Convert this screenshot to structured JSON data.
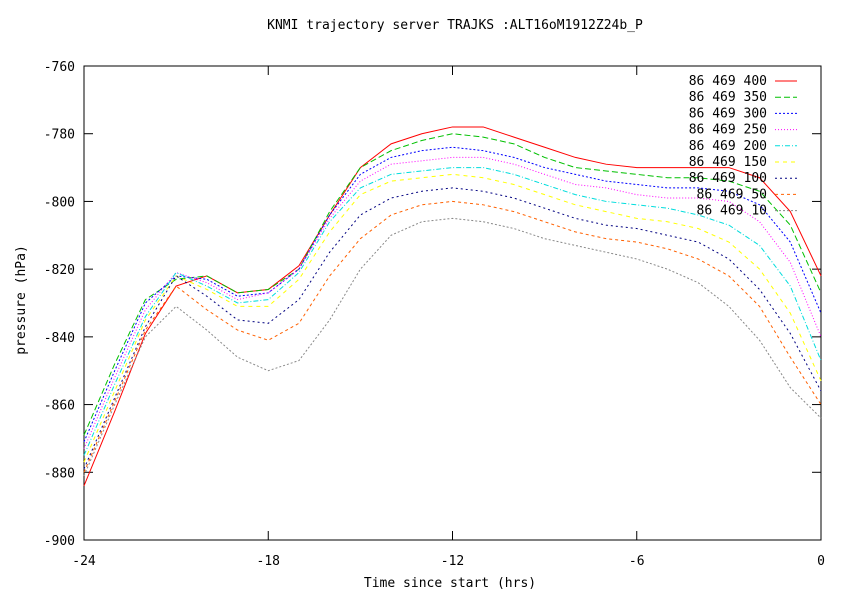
{
  "chart_data": {
    "type": "line",
    "title": "KNMI trajectory server TRAJKS :ALT16oM1912Z24b_P",
    "xlabel": "Time since start (hrs)",
    "ylabel": "pressure (hPa)",
    "xlim": [
      -24,
      0
    ],
    "ylim": [
      -900,
      -760
    ],
    "xticks": [
      -24,
      -18,
      -12,
      -6,
      0
    ],
    "yticks": [
      -900,
      -880,
      -860,
      -840,
      -820,
      -800,
      -780,
      -760
    ],
    "grid": false,
    "legend_position": "top-right",
    "x": [
      -24,
      -23,
      -22,
      -21,
      -20,
      -19,
      -18,
      -17,
      -16,
      -15,
      -14,
      -13,
      -12,
      -11,
      -10,
      -9,
      -8,
      -7,
      -6,
      -5,
      -4,
      -3,
      -2,
      -1,
      0
    ],
    "series": [
      {
        "name": "86 469 400",
        "color": "#ff0000",
        "dash": "",
        "values": [
          -884,
          -862,
          -839,
          -825,
          -822,
          -827,
          -826,
          -819,
          -804,
          -790,
          -783,
          -780,
          -778,
          -778,
          -781,
          -784,
          -787,
          -789,
          -790,
          -790,
          -790,
          -790,
          -793,
          -803,
          -822
        ]
      },
      {
        "name": "86 469 350",
        "color": "#00c000",
        "dash": "6,3",
        "values": [
          -869,
          -848,
          -829,
          -823,
          -822,
          -827,
          -826,
          -820,
          -803,
          -790,
          -785,
          -782,
          -780,
          -781,
          -783,
          -787,
          -790,
          -791,
          -792,
          -793,
          -793,
          -794,
          -797,
          -807,
          -827
        ]
      },
      {
        "name": "86 469 300",
        "color": "#0000ff",
        "dash": "2,2",
        "values": [
          -871,
          -850,
          -830,
          -822,
          -823,
          -828,
          -827,
          -820,
          -804,
          -792,
          -787,
          -785,
          -784,
          -785,
          -787,
          -790,
          -792,
          -794,
          -795,
          -796,
          -796,
          -797,
          -801,
          -812,
          -833
        ]
      },
      {
        "name": "86 469 250",
        "color": "#ff00ff",
        "dash": "1,2",
        "values": [
          -873,
          -852,
          -832,
          -821,
          -824,
          -829,
          -827,
          -820,
          -805,
          -794,
          -789,
          -788,
          -787,
          -787,
          -789,
          -792,
          -795,
          -796,
          -798,
          -799,
          -799,
          -800,
          -806,
          -818,
          -840
        ]
      },
      {
        "name": "86 469 200",
        "color": "#00dddd",
        "dash": "5,2,1,2",
        "values": [
          -875,
          -854,
          -834,
          -821,
          -825,
          -830,
          -829,
          -821,
          -806,
          -796,
          -792,
          -791,
          -790,
          -790,
          -792,
          -795,
          -798,
          -800,
          -801,
          -802,
          -804,
          -807,
          -813,
          -825,
          -847
        ]
      },
      {
        "name": "86 469 150",
        "color": "#ffff00",
        "dash": "4,4",
        "values": [
          -877,
          -856,
          -835,
          -822,
          -826,
          -831,
          -831,
          -823,
          -809,
          -798,
          -794,
          -793,
          -792,
          -793,
          -795,
          -798,
          -801,
          -803,
          -805,
          -806,
          -808,
          -812,
          -820,
          -833,
          -853
        ]
      },
      {
        "name": "86 469 100",
        "color": "#000080",
        "dash": "2,3",
        "values": [
          -879,
          -858,
          -837,
          -822,
          -828,
          -835,
          -836,
          -829,
          -815,
          -804,
          -799,
          -797,
          -796,
          -797,
          -799,
          -802,
          -805,
          -807,
          -808,
          -810,
          -812,
          -817,
          -826,
          -839,
          -856
        ]
      },
      {
        "name": "86 469 50",
        "color": "#ff6000",
        "dash": "3,3",
        "values": [
          -880,
          -859,
          -838,
          -825,
          -832,
          -838,
          -841,
          -836,
          -822,
          -811,
          -804,
          -801,
          -800,
          -801,
          -803,
          -806,
          -809,
          -811,
          -812,
          -814,
          -817,
          -822,
          -831,
          -846,
          -860
        ]
      },
      {
        "name": "86 469 10",
        "color": "#888888",
        "dash": "2,2",
        "values": [
          -881,
          -860,
          -840,
          -831,
          -838,
          -846,
          -850,
          -847,
          -835,
          -820,
          -810,
          -806,
          -805,
          -806,
          -808,
          -811,
          -813,
          -815,
          -817,
          -820,
          -824,
          -831,
          -841,
          -855,
          -864
        ]
      }
    ]
  }
}
